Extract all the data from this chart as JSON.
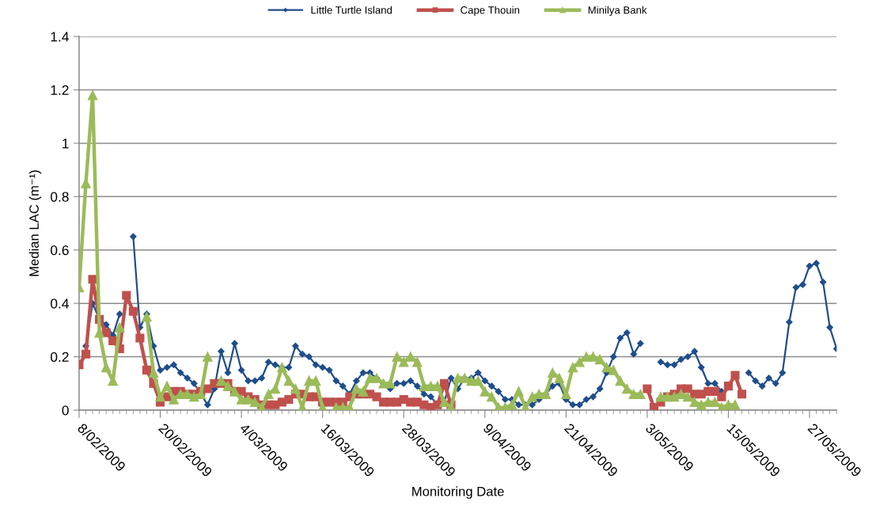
{
  "chart_data": {
    "type": "line",
    "xlabel": "Monitoring Date",
    "ylabel": "Median LAC (m⁻¹)",
    "x": [
      "2009-02-08",
      "2009-02-09",
      "2009-02-10",
      "2009-02-11",
      "2009-02-12",
      "2009-02-13",
      "2009-02-14",
      "2009-02-15",
      "2009-02-16",
      "2009-02-17",
      "2009-02-18",
      "2009-02-19",
      "2009-02-20",
      "2009-02-21",
      "2009-02-22",
      "2009-02-23",
      "2009-02-24",
      "2009-02-25",
      "2009-02-26",
      "2009-02-27",
      "2009-02-28",
      "2009-03-01",
      "2009-03-02",
      "2009-03-03",
      "2009-03-04",
      "2009-03-05",
      "2009-03-06",
      "2009-03-07",
      "2009-03-08",
      "2009-03-09",
      "2009-03-10",
      "2009-03-11",
      "2009-03-12",
      "2009-03-13",
      "2009-03-14",
      "2009-03-15",
      "2009-03-16",
      "2009-03-17",
      "2009-03-18",
      "2009-03-19",
      "2009-03-20",
      "2009-03-21",
      "2009-03-22",
      "2009-03-23",
      "2009-03-24",
      "2009-03-25",
      "2009-03-26",
      "2009-03-27",
      "2009-03-28",
      "2009-03-29",
      "2009-03-30",
      "2009-03-31",
      "2009-04-01",
      "2009-04-02",
      "2009-04-03",
      "2009-04-04",
      "2009-04-05",
      "2009-04-06",
      "2009-04-07",
      "2009-04-08",
      "2009-04-09",
      "2009-04-10",
      "2009-04-11",
      "2009-04-12",
      "2009-04-13",
      "2009-04-14",
      "2009-04-15",
      "2009-04-16",
      "2009-04-17",
      "2009-04-18",
      "2009-04-19",
      "2009-04-20",
      "2009-04-21",
      "2009-04-22",
      "2009-04-23",
      "2009-04-24",
      "2009-04-25",
      "2009-04-26",
      "2009-04-27",
      "2009-04-28",
      "2009-04-29",
      "2009-04-30",
      "2009-05-01",
      "2009-05-02",
      "2009-05-03",
      "2009-05-04",
      "2009-05-05",
      "2009-05-06",
      "2009-05-07",
      "2009-05-08",
      "2009-05-09",
      "2009-05-10",
      "2009-05-11",
      "2009-05-12",
      "2009-05-13",
      "2009-05-14",
      "2009-05-15",
      "2009-05-16",
      "2009-05-17",
      "2009-05-18",
      "2009-05-19",
      "2009-05-20",
      "2009-05-21",
      "2009-05-22",
      "2009-05-23",
      "2009-05-24",
      "2009-05-25",
      "2009-05-26",
      "2009-05-27",
      "2009-05-28",
      "2009-05-29",
      "2009-05-30",
      "2009-05-31"
    ],
    "xlim": [
      "2009-02-08",
      "2009-05-31"
    ],
    "xticks": [
      {
        "value": "2009-02-08",
        "label": "8/02/2009"
      },
      {
        "value": "2009-02-20",
        "label": "20/02/2009"
      },
      {
        "value": "2009-03-04",
        "label": "4/03/2009"
      },
      {
        "value": "2009-03-16",
        "label": "16/03/2009"
      },
      {
        "value": "2009-03-28",
        "label": "28/03/2009"
      },
      {
        "value": "2009-04-09",
        "label": "9/04/2009"
      },
      {
        "value": "2009-04-21",
        "label": "21/04/2009"
      },
      {
        "value": "2009-05-03",
        "label": "3/05/2009"
      },
      {
        "value": "2009-05-15",
        "label": "15/05/2009"
      },
      {
        "value": "2009-05-27",
        "label": "27/05/2009"
      }
    ],
    "ylim": [
      0,
      1.4
    ],
    "yticks": [
      0,
      0.2,
      0.4,
      0.6,
      0.8,
      1,
      1.2,
      1.4
    ],
    "grid": "y",
    "legend": "top",
    "line_style": "solid",
    "series": [
      {
        "name": "Little Turtle Island",
        "color": "#1f4e8c",
        "marker": "diamond",
        "values": [
          null,
          0.24,
          0.4,
          0.34,
          0.32,
          0.28,
          0.36,
          null,
          0.65,
          0.31,
          0.36,
          0.24,
          0.15,
          0.16,
          0.17,
          0.14,
          0.12,
          0.1,
          0.06,
          0.02,
          0.08,
          0.22,
          0.14,
          0.25,
          0.15,
          0.11,
          0.11,
          0.12,
          0.18,
          0.17,
          0.16,
          0.16,
          0.24,
          0.21,
          0.2,
          0.17,
          0.16,
          0.15,
          0.11,
          0.09,
          0.06,
          0.11,
          0.14,
          0.14,
          0.12,
          0.1,
          0.08,
          0.1,
          0.1,
          0.11,
          0.09,
          0.06,
          0.05,
          0.02,
          0.03,
          0.12,
          0.08,
          0.12,
          0.12,
          0.14,
          0.11,
          0.09,
          0.07,
          0.04,
          0.04,
          0.02,
          0.02,
          0.02,
          0.04,
          0.06,
          0.09,
          0.1,
          0.04,
          0.02,
          0.02,
          0.04,
          0.05,
          0.08,
          0.14,
          0.2,
          0.27,
          0.29,
          0.21,
          0.25,
          null,
          null,
          0.18,
          0.17,
          0.17,
          0.19,
          0.2,
          0.22,
          0.16,
          0.1,
          0.1,
          0.07,
          null,
          null,
          null,
          0.14,
          0.11,
          0.09,
          0.12,
          0.1,
          0.14,
          0.33,
          0.46,
          0.47,
          0.54,
          0.55,
          0.48,
          0.31,
          0.23
        ]
      },
      {
        "name": "Cape Thouin",
        "color": "#c0504d",
        "marker": "square",
        "values": [
          0.17,
          0.21,
          0.49,
          0.34,
          0.29,
          0.26,
          0.23,
          0.43,
          0.37,
          0.27,
          0.15,
          0.1,
          0.03,
          0.05,
          0.07,
          0.07,
          0.06,
          0.06,
          0.07,
          0.08,
          0.1,
          0.1,
          0.1,
          0.07,
          0.07,
          0.05,
          0.04,
          0.02,
          0.02,
          0.02,
          0.03,
          0.04,
          0.06,
          0.06,
          0.05,
          0.05,
          0.03,
          0.03,
          0.03,
          0.03,
          0.05,
          0.06,
          0.06,
          0.06,
          0.05,
          0.03,
          0.03,
          0.03,
          0.04,
          0.03,
          0.03,
          0.02,
          0.01,
          0.02,
          0.1,
          0.02,
          null,
          null,
          null,
          null,
          null,
          null,
          null,
          null,
          null,
          null,
          null,
          null,
          null,
          null,
          null,
          null,
          null,
          null,
          null,
          null,
          null,
          null,
          null,
          null,
          null,
          null,
          null,
          null,
          0.08,
          0.01,
          0.03,
          0.05,
          0.06,
          0.08,
          0.08,
          0.06,
          0.06,
          0.07,
          0.07,
          0.05,
          0.09,
          0.13,
          0.06,
          null,
          null,
          null,
          null,
          null,
          null,
          null,
          null,
          null,
          null,
          null,
          null,
          null,
          null
        ]
      },
      {
        "name": "Minilya Bank",
        "color": "#9bbb59",
        "marker": "triangle",
        "values": [
          0.46,
          0.85,
          1.18,
          0.29,
          0.16,
          0.11,
          0.31,
          null,
          null,
          null,
          0.35,
          0.14,
          0.05,
          0.09,
          0.04,
          0.06,
          0.06,
          0.05,
          0.06,
          0.2,
          null,
          0.11,
          0.09,
          0.07,
          0.04,
          0.04,
          0.03,
          0.01,
          0.06,
          0.08,
          0.16,
          0.11,
          0.08,
          0.01,
          0.11,
          0.11,
          0.01,
          null,
          0.01,
          0.01,
          0.01,
          0.08,
          0.07,
          0.12,
          0.12,
          0.1,
          0.1,
          0.2,
          0.18,
          0.2,
          0.18,
          0.09,
          0.09,
          0.09,
          0.03,
          0.01,
          0.12,
          0.12,
          0.11,
          0.11,
          0.07,
          0.05,
          0.01,
          0.01,
          0.02,
          0.07,
          0.01,
          0.05,
          0.06,
          0.06,
          0.14,
          0.12,
          0.06,
          0.16,
          0.18,
          0.2,
          0.2,
          0.19,
          0.16,
          0.15,
          0.11,
          0.08,
          0.06,
          0.06,
          null,
          null,
          0.05,
          0.05,
          0.05,
          0.06,
          0.05,
          0.03,
          0.02,
          0.03,
          0.03,
          0.01,
          0.02,
          0.02,
          null,
          null,
          null,
          null,
          null,
          null,
          null,
          null,
          null,
          null,
          null,
          null,
          null,
          null,
          null
        ]
      }
    ]
  }
}
